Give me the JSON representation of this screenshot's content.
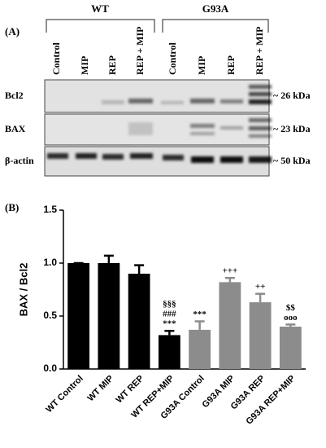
{
  "blot": {
    "panel_label": "(A)",
    "groups": [
      {
        "label": "WT",
        "lanes": [
          "Control",
          "MIP",
          "REP",
          "REP + MIP"
        ]
      },
      {
        "label": "G93A",
        "lanes": [
          "Control",
          "MIP",
          "REP",
          "REP + MIP"
        ]
      }
    ],
    "rows": [
      {
        "label": "Bcl2",
        "size": "~ 26 kDa"
      },
      {
        "label": "BAX",
        "size": "~ 23 kDa"
      },
      {
        "label": "β-actin",
        "size": "~ 50 kDa"
      }
    ]
  },
  "chart_data": {
    "type": "bar",
    "panel_label": "(B)",
    "y_label": "BAX / Bcl2",
    "categories": [
      "WT Control",
      "WT MIP",
      "WT REP",
      "WT REP+MIP",
      "G93A Control",
      "G93A MIP",
      "G93A REP",
      "G93A REP+MIP"
    ],
    "values": [
      1.0,
      1.0,
      0.9,
      0.32,
      0.37,
      0.82,
      0.63,
      0.4
    ],
    "errors": [
      0,
      0.07,
      0.08,
      0.04,
      0.08,
      0.04,
      0.08,
      0.02
    ],
    "colors": [
      "#000000",
      "#000000",
      "#000000",
      "#000000",
      "#8c8c8c",
      "#8c8c8c",
      "#8c8c8c",
      "#8c8c8c"
    ],
    "annotations": [
      {
        "category": "WT REP+MIP",
        "lines": [
          "§§§",
          "###",
          "***"
        ]
      },
      {
        "category": "G93A Control",
        "lines": [
          "***"
        ]
      },
      {
        "category": "G93A MIP",
        "lines": [
          "+++"
        ]
      },
      {
        "category": "G93A REP",
        "lines": [
          "++"
        ]
      },
      {
        "category": "G93A REP+MIP",
        "lines": [
          "$$",
          "ooo"
        ]
      }
    ],
    "ylim": [
      0,
      1.5
    ],
    "yticks": [
      {
        "value": 0,
        "label": "0.0"
      },
      {
        "value": 0.5,
        "label": "0.5"
      },
      {
        "value": 1,
        "label": "1.0"
      },
      {
        "value": 1.5,
        "label": "1.5"
      }
    ]
  }
}
